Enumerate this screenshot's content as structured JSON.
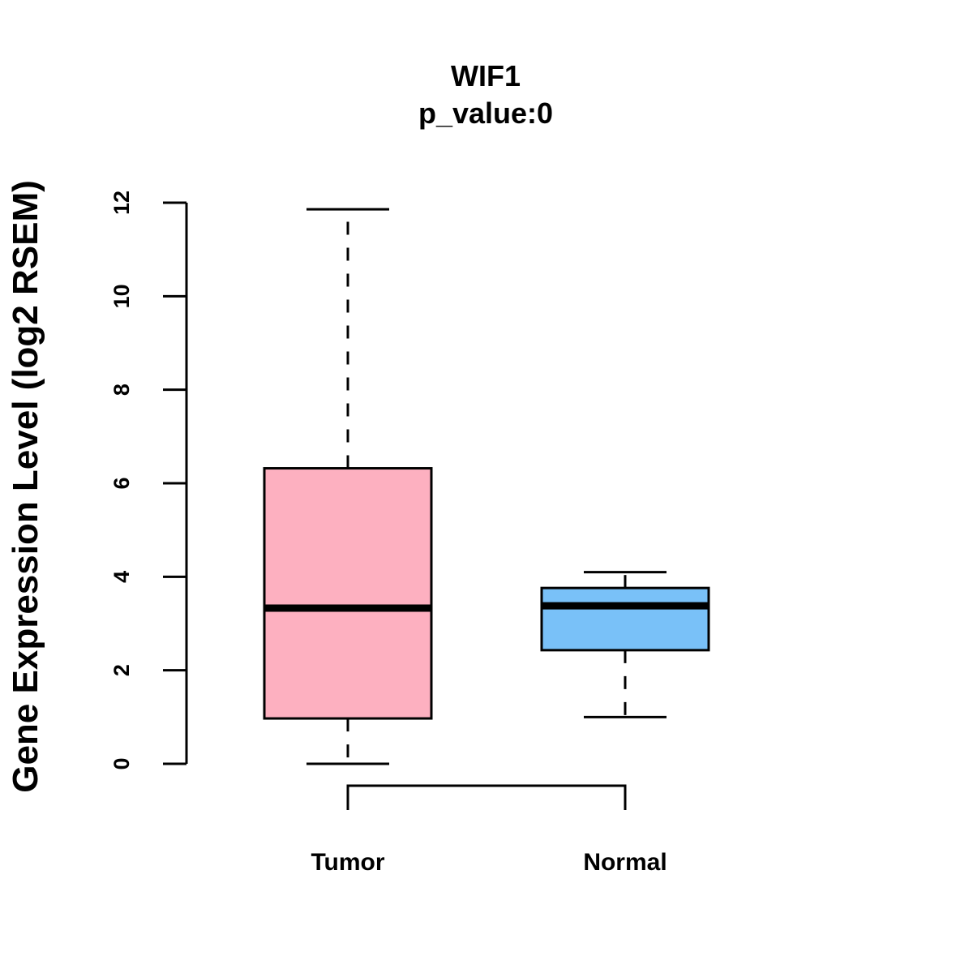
{
  "chart_data": {
    "type": "boxplot",
    "title": "WIF1",
    "subtitle": "p_value:0",
    "xlabel": "",
    "ylabel": "Gene Expression Level (log2 RSEM)",
    "ylim": [
      0,
      12
    ],
    "yticks": [
      0,
      2,
      4,
      6,
      8,
      10,
      12
    ],
    "grid": false,
    "categories": [
      "Tumor",
      "Normal"
    ],
    "boxes": [
      {
        "category": "Tumor",
        "color": "#FDB0C0",
        "whisker_low": 0.0,
        "q1": 0.97,
        "median": 3.33,
        "q3": 6.32,
        "whisker_high": 11.86
      },
      {
        "category": "Normal",
        "color": "#79C1F8",
        "whisker_low": 1.0,
        "q1": 2.43,
        "median": 3.38,
        "q3": 3.76,
        "whisker_high": 4.1
      }
    ],
    "comparison_bracket": [
      "Tumor",
      "Normal"
    ]
  }
}
